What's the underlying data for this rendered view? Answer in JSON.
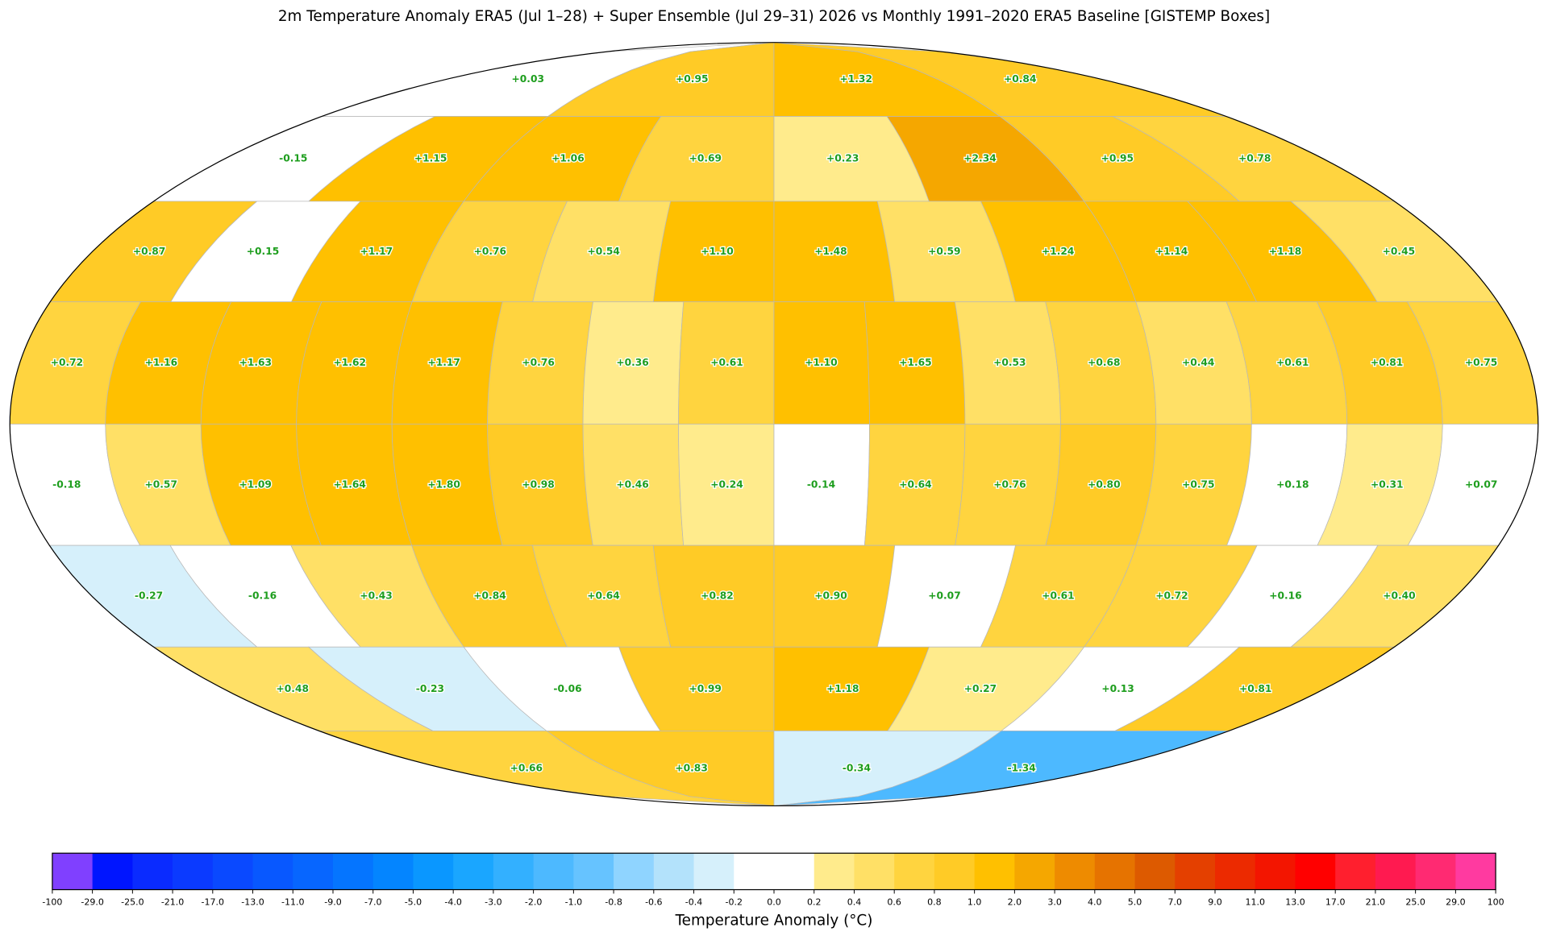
{
  "title": "2m Temperature Anomaly  ERA5 (Jul 1–28) + Super Ensemble (Jul 29–31) 2026  vs Monthly 1991–2020 ERA5 Baseline  [GISTEMP Boxes]",
  "rows": [
    [
      {
        "value": 0.03,
        "label": "+0.03"
      },
      {
        "value": 0.95,
        "label": "+0.95"
      },
      {
        "value": 1.32,
        "label": "+1.32"
      },
      {
        "value": 0.84,
        "label": "+0.84"
      }
    ],
    [
      {
        "value": -0.15,
        "label": "-0.15"
      },
      {
        "value": 1.15,
        "label": "+1.15"
      },
      {
        "value": 1.06,
        "label": "+1.06"
      },
      {
        "value": 0.69,
        "label": "+0.69"
      },
      {
        "value": 0.23,
        "label": "+0.23"
      },
      {
        "value": 2.34,
        "label": "+2.34"
      },
      {
        "value": 0.95,
        "label": "+0.95"
      },
      {
        "value": 0.78,
        "label": "+0.78"
      }
    ],
    [
      {
        "value": 0.87,
        "label": "+0.87"
      },
      {
        "value": 0.15,
        "label": "+0.15"
      },
      {
        "value": 1.17,
        "label": "+1.17"
      },
      {
        "value": 0.76,
        "label": "+0.76"
      },
      {
        "value": 0.54,
        "label": "+0.54"
      },
      {
        "value": 1.1,
        "label": "+1.10"
      },
      {
        "value": 1.48,
        "label": "+1.48"
      },
      {
        "value": 0.59,
        "label": "+0.59"
      },
      {
        "value": 1.24,
        "label": "+1.24"
      },
      {
        "value": 1.14,
        "label": "+1.14"
      },
      {
        "value": 1.18,
        "label": "+1.18"
      },
      {
        "value": 0.45,
        "label": "+0.45"
      }
    ],
    [
      {
        "value": 0.72,
        "label": "+0.72"
      },
      {
        "value": 1.16,
        "label": "+1.16"
      },
      {
        "value": 1.63,
        "label": "+1.63"
      },
      {
        "value": 1.62,
        "label": "+1.62"
      },
      {
        "value": 1.17,
        "label": "+1.17"
      },
      {
        "value": 0.76,
        "label": "+0.76"
      },
      {
        "value": 0.36,
        "label": "+0.36"
      },
      {
        "value": 0.61,
        "label": "+0.61"
      },
      {
        "value": 1.1,
        "label": "+1.10"
      },
      {
        "value": 1.65,
        "label": "+1.65"
      },
      {
        "value": 0.53,
        "label": "+0.53"
      },
      {
        "value": 0.68,
        "label": "+0.68"
      },
      {
        "value": 0.44,
        "label": "+0.44"
      },
      {
        "value": 0.61,
        "label": "+0.61"
      },
      {
        "value": 0.81,
        "label": "+0.81"
      },
      {
        "value": 0.75,
        "label": "+0.75"
      }
    ],
    [
      {
        "value": -0.18,
        "label": "-0.18"
      },
      {
        "value": 0.57,
        "label": "+0.57"
      },
      {
        "value": 1.09,
        "label": "+1.09"
      },
      {
        "value": 1.64,
        "label": "+1.64"
      },
      {
        "value": 1.8,
        "label": "+1.80"
      },
      {
        "value": 0.98,
        "label": "+0.98"
      },
      {
        "value": 0.46,
        "label": "+0.46"
      },
      {
        "value": 0.24,
        "label": "+0.24"
      },
      {
        "value": -0.14,
        "label": "-0.14"
      },
      {
        "value": 0.64,
        "label": "+0.64"
      },
      {
        "value": 0.76,
        "label": "+0.76"
      },
      {
        "value": 0.8,
        "label": "+0.80"
      },
      {
        "value": 0.75,
        "label": "+0.75"
      },
      {
        "value": 0.18,
        "label": "+0.18"
      },
      {
        "value": 0.31,
        "label": "+0.31"
      },
      {
        "value": 0.07,
        "label": "+0.07"
      }
    ],
    [
      {
        "value": -0.27,
        "label": "-0.27"
      },
      {
        "value": -0.16,
        "label": "-0.16"
      },
      {
        "value": 0.43,
        "label": "+0.43"
      },
      {
        "value": 0.84,
        "label": "+0.84"
      },
      {
        "value": 0.64,
        "label": "+0.64"
      },
      {
        "value": 0.82,
        "label": "+0.82"
      },
      {
        "value": 0.9,
        "label": "+0.90"
      },
      {
        "value": 0.07,
        "label": "+0.07"
      },
      {
        "value": 0.61,
        "label": "+0.61"
      },
      {
        "value": 0.72,
        "label": "+0.72"
      },
      {
        "value": 0.16,
        "label": "+0.16"
      },
      {
        "value": 0.4,
        "label": "+0.40"
      }
    ],
    [
      {
        "value": 0.48,
        "label": "+0.48"
      },
      {
        "value": -0.23,
        "label": "-0.23"
      },
      {
        "value": -0.06,
        "label": "-0.06"
      },
      {
        "value": 0.99,
        "label": "+0.99"
      },
      {
        "value": 1.18,
        "label": "+1.18"
      },
      {
        "value": 0.27,
        "label": "+0.27"
      },
      {
        "value": 0.13,
        "label": "+0.13"
      },
      {
        "value": 0.81,
        "label": "+0.81"
      }
    ],
    [
      {
        "value": 0.66,
        "label": "+0.66"
      },
      {
        "value": 0.83,
        "label": "+0.83"
      },
      {
        "value": -0.34,
        "label": "-0.34"
      },
      {
        "value": -1.34,
        "label": "-1.34"
      }
    ]
  ],
  "colorbar": {
    "label": "Temperature Anomaly (°C)",
    "ticks": [
      -100,
      {
        "value": -29,
        "label": "-29.0"
      },
      {
        "value": -25,
        "label": "-25.0"
      },
      {
        "value": -21,
        "label": "-21.0"
      },
      {
        "value": -17,
        "label": "-17.0"
      },
      {
        "value": -13,
        "label": "-13.0"
      },
      {
        "value": -11,
        "label": "-11.0"
      },
      {
        "value": -9,
        "label": "-9.0"
      },
      {
        "value": -7,
        "label": "-7.0"
      },
      {
        "value": -5,
        "label": "-5.0"
      },
      {
        "value": -4,
        "label": "-4.0"
      },
      {
        "value": -3,
        "label": "-3.0"
      },
      {
        "value": -2,
        "label": "-2.0"
      },
      {
        "value": -1,
        "label": "-1.0"
      },
      -0.8,
      -0.6,
      -0.4,
      -0.2,
      {
        "value": 0,
        "label": "0.0"
      },
      0.2,
      0.4,
      0.6,
      0.8,
      {
        "value": 1,
        "label": "1.0"
      },
      {
        "value": 2,
        "label": "2.0"
      },
      {
        "value": 3,
        "label": "3.0"
      },
      {
        "value": 4,
        "label": "4.0"
      },
      {
        "value": 5,
        "label": "5.0"
      },
      {
        "value": 7,
        "label": "7.0"
      },
      {
        "value": 9,
        "label": "9.0"
      },
      {
        "value": 11,
        "label": "11.0"
      },
      {
        "value": 13,
        "label": "13.0"
      },
      {
        "value": 17,
        "label": "17.0"
      },
      {
        "value": 21,
        "label": "21.0"
      },
      {
        "value": 25,
        "label": "25.0"
      },
      {
        "value": 29,
        "label": "29.0"
      },
      100
    ],
    "colors": [
      "#8040ff",
      "#0015ff",
      "#0a2bff",
      "#0b3aff",
      "#0a49ff",
      "#0858ff",
      "#0766ff",
      "#0575ff",
      "#0485ff",
      "#0a97ff",
      "#1aa6ff",
      "#33b0ff",
      "#4db9ff",
      "#66c3ff",
      "#8fd4ff",
      "#b3e2fb",
      "#d6f0fb",
      "#ffffff",
      "#ffffff",
      "#ffeb8c",
      "#ffe066",
      "#ffd43f",
      "#ffcb26",
      "#ffc000",
      "#f5a700",
      "#ee8b00",
      "#e67300",
      "#dd5a00",
      "#e44000",
      "#ec2a00",
      "#f31500",
      "#ff0000",
      "#ff1f2e",
      "#ff1a50",
      "#ff2a72",
      "#ff3aa0"
    ]
  }
}
